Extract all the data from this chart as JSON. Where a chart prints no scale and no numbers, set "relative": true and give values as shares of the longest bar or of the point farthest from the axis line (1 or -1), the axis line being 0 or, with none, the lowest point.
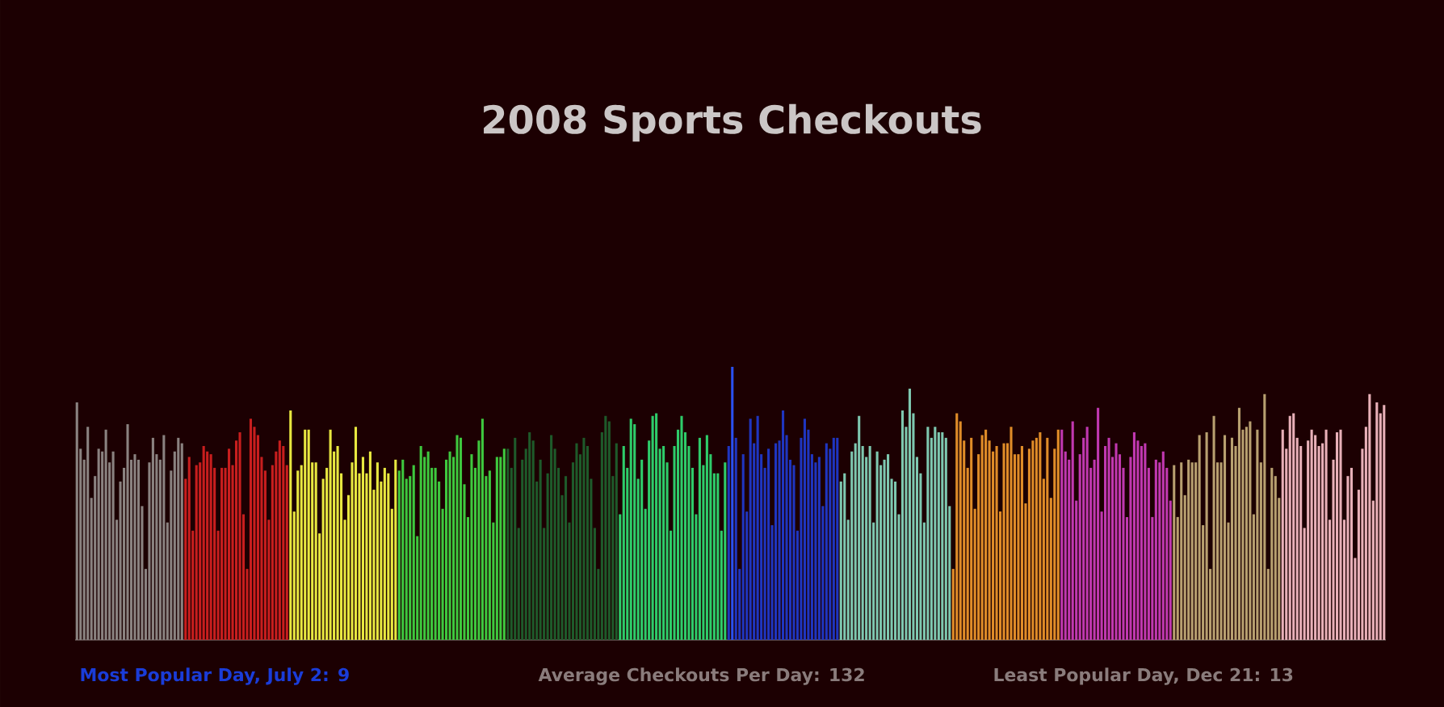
{
  "chart_data": {
    "type": "bar",
    "title": "2008 Sports Checkouts",
    "relative": true,
    "annotations": [
      "Most Popular Day, July 2: 9",
      "Average Checkouts Per Day: 132",
      "Least Popular Day, Dec 21: 13"
    ],
    "categories": [
      null,
      null,
      null,
      null,
      null,
      null,
      null,
      null,
      null,
      null,
      null,
      null,
      null,
      null,
      null,
      null,
      null,
      null,
      null,
      null,
      null,
      null,
      null,
      null,
      null,
      null,
      null,
      null,
      null,
      null,
      null,
      null,
      null,
      null,
      null,
      null,
      null,
      null,
      null,
      null,
      null,
      null,
      null,
      null,
      null,
      null,
      null,
      null,
      null,
      null,
      null,
      null,
      null,
      null,
      null,
      null,
      null,
      null,
      null,
      null,
      null,
      null,
      null,
      null,
      null,
      null,
      null,
      null,
      null,
      null,
      null,
      null,
      null,
      null,
      null,
      null,
      null,
      null,
      null,
      null,
      null,
      null,
      null,
      null,
      null,
      null,
      null,
      null,
      null,
      null,
      null,
      null,
      null,
      null,
      null,
      null,
      null,
      null,
      null,
      null,
      null,
      null,
      null,
      null,
      null,
      null,
      null,
      null,
      null,
      null,
      null,
      null,
      null,
      null,
      null,
      null,
      null,
      null,
      null,
      null,
      null,
      null,
      null,
      null,
      null,
      null,
      null,
      null,
      null,
      null,
      null,
      null,
      null,
      null,
      null,
      null,
      null,
      null,
      null,
      null,
      null,
      null,
      null,
      null,
      null,
      null,
      null,
      null,
      null,
      null,
      null,
      null,
      null,
      null,
      null,
      null,
      null,
      null,
      null,
      null,
      null,
      null,
      null,
      null,
      null,
      null,
      null,
      null,
      null,
      null,
      null,
      null,
      null,
      null,
      null,
      null,
      null,
      null,
      null,
      null,
      null,
      null,
      null,
      null,
      null,
      null,
      null,
      null,
      null,
      null,
      null,
      null,
      null,
      null,
      null,
      null,
      null,
      null,
      null,
      null,
      null,
      null,
      null,
      null,
      null,
      null,
      null,
      null,
      null,
      null,
      null,
      null,
      null,
      null,
      null,
      null,
      null,
      null,
      null,
      null,
      null,
      null,
      null,
      null,
      null,
      null,
      null,
      null,
      null,
      null,
      null,
      null,
      null,
      null,
      null,
      null,
      null,
      null,
      null,
      null,
      null,
      null,
      null,
      null,
      null,
      null,
      null,
      null,
      null,
      null,
      null,
      null,
      null,
      null,
      null,
      null,
      null,
      null,
      null,
      null,
      null,
      null,
      null,
      null,
      null,
      null,
      null,
      null,
      null,
      null,
      null,
      null,
      null,
      null,
      null,
      null,
      null,
      null,
      null,
      null,
      null,
      null,
      null,
      null,
      null,
      null,
      null,
      null,
      null,
      null,
      null,
      null,
      null,
      null,
      null,
      null,
      null,
      null,
      null,
      null,
      null,
      null,
      null,
      null,
      null,
      null,
      null,
      null,
      null,
      null,
      null,
      null,
      null,
      null,
      null,
      null,
      null,
      null,
      null,
      null,
      null,
      null,
      null,
      null,
      null,
      null,
      null,
      null,
      null,
      null,
      null,
      null,
      null,
      null,
      null,
      null,
      null,
      null,
      null,
      null,
      null,
      null,
      null,
      null,
      null,
      null,
      null,
      null,
      null,
      null,
      null,
      null,
      null,
      null,
      null,
      null,
      null,
      null,
      null,
      null,
      null,
      null
    ],
    "values": [
      0.87,
      0.7,
      0.66,
      0.78,
      0.52,
      0.6,
      0.7,
      0.69,
      0.77,
      0.65,
      0.69,
      0.44,
      0.58,
      0.63,
      0.79,
      0.66,
      0.68,
      0.66,
      0.49,
      0.26,
      0.65,
      0.74,
      0.68,
      0.66,
      0.75,
      0.43,
      0.62,
      0.69,
      0.74,
      0.72,
      0.59,
      0.67,
      0.4,
      0.64,
      0.65,
      0.71,
      0.69,
      0.68,
      0.63,
      0.4,
      0.63,
      0.63,
      0.7,
      0.64,
      0.73,
      0.76,
      0.46,
      0.26,
      0.81,
      0.78,
      0.75,
      0.67,
      0.62,
      0.44,
      0.64,
      0.69,
      0.73,
      0.71,
      0.64,
      0.84,
      0.47,
      0.62,
      0.64,
      0.77,
      0.77,
      0.65,
      0.65,
      0.39,
      0.59,
      0.63,
      0.77,
      0.69,
      0.71,
      0.61,
      0.44,
      0.53,
      0.65,
      0.78,
      0.61,
      0.67,
      0.61,
      0.69,
      0.55,
      0.65,
      0.58,
      0.63,
      0.61,
      0.48,
      0.66,
      0.62,
      0.66,
      0.59,
      0.6,
      0.64,
      0.38,
      0.71,
      0.67,
      0.69,
      0.63,
      0.63,
      0.58,
      0.48,
      0.66,
      0.69,
      0.67,
      0.75,
      0.74,
      0.57,
      0.45,
      0.68,
      0.63,
      0.73,
      0.81,
      0.6,
      0.62,
      0.43,
      0.67,
      0.67,
      0.7,
      0.7,
      0.63,
      0.74,
      0.41,
      0.66,
      0.7,
      0.76,
      0.73,
      0.58,
      0.66,
      0.41,
      0.61,
      0.75,
      0.7,
      0.63,
      0.53,
      0.6,
      0.43,
      0.65,
      0.72,
      0.68,
      0.74,
      0.71,
      0.59,
      0.41,
      0.26,
      0.76,
      0.82,
      0.8,
      0.6,
      0.72,
      0.46,
      0.71,
      0.63,
      0.81,
      0.79,
      0.59,
      0.66,
      0.48,
      0.73,
      0.82,
      0.83,
      0.7,
      0.71,
      0.65,
      0.4,
      0.71,
      0.77,
      0.82,
      0.76,
      0.71,
      0.63,
      0.46,
      0.74,
      0.64,
      0.75,
      0.68,
      0.61,
      0.61,
      0.4,
      0.65,
      0.71,
      1,
      0.74,
      0.26,
      0.68,
      0.47,
      0.81,
      0.72,
      0.82,
      0.68,
      0.63,
      0.7,
      0.42,
      0.72,
      0.73,
      0.84,
      0.75,
      0.66,
      0.64,
      0.4,
      0.74,
      0.81,
      0.77,
      0.68,
      0.65,
      0.67,
      0.49,
      0.72,
      0.7,
      0.74,
      0.74,
      0.58,
      0.61,
      0.44,
      0.69,
      0.72,
      0.82,
      0.71,
      0.67,
      0.71,
      0.43,
      0.69,
      0.64,
      0.66,
      0.68,
      0.59,
      0.58,
      0.46,
      0.84,
      0.78,
      0.92,
      0.83,
      0.67,
      0.61,
      0.43,
      0.78,
      0.74,
      0.78,
      0.76,
      0.76,
      0.74,
      0.49,
      0.26,
      0.83,
      0.8,
      0.73,
      0.63,
      0.74,
      0.48,
      0.68,
      0.75,
      0.77,
      0.73,
      0.69,
      0.71,
      0.47,
      0.72,
      0.72,
      0.78,
      0.68,
      0.68,
      0.71,
      0.5,
      0.7,
      0.73,
      0.74,
      0.76,
      0.59,
      0.74,
      0.52,
      0.7,
      0.77,
      0.77,
      0.69,
      0.66,
      0.8,
      0.51,
      0.68,
      0.74,
      0.78,
      0.63,
      0.66,
      0.85,
      0.47,
      0.71,
      0.74,
      0.67,
      0.72,
      0.68,
      0.63,
      0.45,
      0.67,
      0.76,
      0.73,
      0.71,
      0.72,
      0.63,
      0.45,
      0.66,
      0.65,
      0.69,
      0.63,
      0.51,
      0.64,
      0.45,
      0.65,
      0.53,
      0.66,
      0.65,
      0.65,
      0.75,
      0.42,
      0.76,
      0.26,
      0.82,
      0.65,
      0.65,
      0.75,
      0.43,
      0.74,
      0.71,
      0.85,
      0.77,
      0.78,
      0.8,
      0.46,
      0.77,
      0.65,
      0.9,
      0.26,
      0.63,
      0.6,
      0.52,
      0.77,
      0.7,
      0.82,
      0.83,
      0.74,
      0.71,
      0.41,
      0.73,
      0.77,
      0.75,
      0.71,
      0.72,
      0.77,
      0.44,
      0.66,
      0.76,
      0.77,
      0.44,
      0.6,
      0.63,
      0.3,
      0.55,
      0.7,
      0.78,
      0.9,
      0.51,
      0.87,
      0.83,
      0.86
    ],
    "colors": [
      "#8a8280",
      "#8a8280",
      "#8a8280",
      "#8a8280",
      "#8a8280",
      "#8a8280",
      "#8a8280",
      "#8a8280",
      "#8a8280",
      "#8a8280",
      "#8a8280",
      "#8a8280",
      "#8a8280",
      "#8a8280",
      "#8a8280",
      "#8a8280",
      "#8a8280",
      "#8a8280",
      "#8a8280",
      "#8a8280",
      "#8a8280",
      "#8a8280",
      "#8a8280",
      "#8a8280",
      "#8a8280",
      "#8a8280",
      "#8a8280",
      "#8a8280",
      "#8a8280",
      "#8a8280",
      "#c81e1e",
      "#c81e1e",
      "#c81e1e",
      "#c81e1e",
      "#c81e1e",
      "#c81e1e",
      "#c81e1e",
      "#c81e1e",
      "#c81e1e",
      "#c81e1e",
      "#c81e1e",
      "#c81e1e",
      "#c81e1e",
      "#c81e1e",
      "#c81e1e",
      "#c81e1e",
      "#c81e1e",
      "#c81e1e",
      "#c81e1e",
      "#c81e1e",
      "#c81e1e",
      "#c81e1e",
      "#c81e1e",
      "#c81e1e",
      "#c81e1e",
      "#c81e1e",
      "#c81e1e",
      "#c81e1e",
      "#c81e1e",
      "#e8e840",
      "#e8e840",
      "#e8e840",
      "#e8e840",
      "#e8e840",
      "#e8e840",
      "#e8e840",
      "#e8e840",
      "#e8e840",
      "#e8e840",
      "#e8e840",
      "#e8e840",
      "#e8e840",
      "#e8e840",
      "#e8e840",
      "#e8e840",
      "#e8e840",
      "#e8e840",
      "#e8e840",
      "#e8e840",
      "#e8e840",
      "#e8e840",
      "#e8e840",
      "#e8e840",
      "#e8e840",
      "#e8e840",
      "#e8e840",
      "#e8e840",
      "#e8e840",
      "#e8e840",
      "#3ec83e",
      "#3ec83e",
      "#3ec83e",
      "#3ec83e",
      "#3ec83e",
      "#3ec83e",
      "#3ec83e",
      "#3ec83e",
      "#3ec83e",
      "#3ec83e",
      "#3ec83e",
      "#3ec83e",
      "#3ec83e",
      "#3ec83e",
      "#3ec83e",
      "#3ec83e",
      "#3ec83e",
      "#3ec83e",
      "#3ec83e",
      "#3ec83e",
      "#3ec83e",
      "#3ec83e",
      "#3ec83e",
      "#3ec83e",
      "#3ec83e",
      "#3ec83e",
      "#3ec83e",
      "#3ec83e",
      "#3ec83e",
      "#3ec83e",
      "#1e5a2a",
      "#1e5a2a",
      "#1e5a2a",
      "#1e5a2a",
      "#1e5a2a",
      "#1e5a2a",
      "#1e5a2a",
      "#1e5a2a",
      "#1e5a2a",
      "#1e5a2a",
      "#1e5a2a",
      "#1e5a2a",
      "#1e5a2a",
      "#1e5a2a",
      "#1e5a2a",
      "#1e5a2a",
      "#1e5a2a",
      "#1e5a2a",
      "#1e5a2a",
      "#1e5a2a",
      "#1e5a2a",
      "#1e5a2a",
      "#1e5a2a",
      "#1e5a2a",
      "#1e5a2a",
      "#1e5a2a",
      "#1e5a2a",
      "#1e5a2a",
      "#1e5a2a",
      "#1e5a2a",
      "#1e5a2a",
      "#2ecc6a",
      "#2ecc6a",
      "#2ecc6a",
      "#2ecc6a",
      "#2ecc6a",
      "#2ecc6a",
      "#2ecc6a",
      "#2ecc6a",
      "#2ecc6a",
      "#2ecc6a",
      "#2ecc6a",
      "#2ecc6a",
      "#2ecc6a",
      "#2ecc6a",
      "#2ecc6a",
      "#2ecc6a",
      "#2ecc6a",
      "#2ecc6a",
      "#2ecc6a",
      "#2ecc6a",
      "#2ecc6a",
      "#2ecc6a",
      "#2ecc6a",
      "#2ecc6a",
      "#2ecc6a",
      "#2ecc6a",
      "#2ecc6a",
      "#2ecc6a",
      "#2ecc6a",
      "#2ecc6a",
      "#1f35c0",
      "#2a50f0",
      "#1f35c0",
      "#1f35c0",
      "#1f35c0",
      "#1f35c0",
      "#1f35c0",
      "#1f35c0",
      "#1f35c0",
      "#1f35c0",
      "#1f35c0",
      "#1f35c0",
      "#1f35c0",
      "#1f35c0",
      "#1f35c0",
      "#1f35c0",
      "#1f35c0",
      "#1f35c0",
      "#1f35c0",
      "#1f35c0",
      "#1f35c0",
      "#1f35c0",
      "#1f35c0",
      "#1f35c0",
      "#1f35c0",
      "#1f35c0",
      "#1f35c0",
      "#1f35c0",
      "#1f35c0",
      "#1f35c0",
      "#1f35c0",
      "#7ec8b0",
      "#7ec8b0",
      "#7ec8b0",
      "#7ec8b0",
      "#7ec8b0",
      "#7ec8b0",
      "#7ec8b0",
      "#7ec8b0",
      "#7ec8b0",
      "#7ec8b0",
      "#7ec8b0",
      "#7ec8b0",
      "#7ec8b0",
      "#7ec8b0",
      "#7ec8b0",
      "#7ec8b0",
      "#7ec8b0",
      "#7ec8b0",
      "#7ec8b0",
      "#7ec8b0",
      "#7ec8b0",
      "#7ec8b0",
      "#7ec8b0",
      "#7ec8b0",
      "#7ec8b0",
      "#7ec8b0",
      "#7ec8b0",
      "#7ec8b0",
      "#7ec8b0",
      "#7ec8b0",
      "#7ec8b0",
      "#e08c28",
      "#e08c28",
      "#e08c28",
      "#e08c28",
      "#e08c28",
      "#e08c28",
      "#e08c28",
      "#e08c28",
      "#e08c28",
      "#e08c28",
      "#e08c28",
      "#e08c28",
      "#e08c28",
      "#e08c28",
      "#e08c28",
      "#e08c28",
      "#e08c28",
      "#e08c28",
      "#e08c28",
      "#e08c28",
      "#e08c28",
      "#e08c28",
      "#e08c28",
      "#e08c28",
      "#e08c28",
      "#e08c28",
      "#e08c28",
      "#e08c28",
      "#e08c28",
      "#e08c28",
      "#c038b0",
      "#c038b0",
      "#c038b0",
      "#c038b0",
      "#c038b0",
      "#c038b0",
      "#c038b0",
      "#c038b0",
      "#c038b0",
      "#c038b0",
      "#c038b0",
      "#c038b0",
      "#c038b0",
      "#c038b0",
      "#c038b0",
      "#c038b0",
      "#c038b0",
      "#c038b0",
      "#c038b0",
      "#c038b0",
      "#c038b0",
      "#c038b0",
      "#c038b0",
      "#c038b0",
      "#c038b0",
      "#c038b0",
      "#c038b0",
      "#c038b0",
      "#c038b0",
      "#c038b0",
      "#c038b0",
      "#b8a070",
      "#b8a070",
      "#b8a070",
      "#b8a070",
      "#b8a070",
      "#b8a070",
      "#b8a070",
      "#b8a070",
      "#b8a070",
      "#b8a070",
      "#b8a070",
      "#b8a070",
      "#b8a070",
      "#b8a070",
      "#b8a070",
      "#b8a070",
      "#b8a070",
      "#b8a070",
      "#b8a070",
      "#b8a070",
      "#b8a070",
      "#b8a070",
      "#b8a070",
      "#b8a070",
      "#b8a070",
      "#b8a070",
      "#b8a070",
      "#b8a070",
      "#b8a070",
      "#b8a070",
      "#e8b0b8",
      "#e8b0b8",
      "#e8b0b8",
      "#e8b0b8",
      "#e8b0b8",
      "#e8b0b8",
      "#e8b0b8",
      "#e8b0b8",
      "#e8b0b8",
      "#e8b0b8",
      "#e8b0b8",
      "#e8b0b8",
      "#e8b0b8",
      "#e8b0b8",
      "#e8b0b8",
      "#e8b0b8",
      "#e8b0b8",
      "#e8b0b8",
      "#e8b0b8",
      "#e8b0b8",
      "#e8b0b8",
      "#e8b0b8",
      "#e8b0b8",
      "#e8b0b8",
      "#e8b0b8",
      "#e8b0b8",
      "#e8b0b8",
      "#e8b0b8",
      "#e8b0b8"
    ]
  }
}
